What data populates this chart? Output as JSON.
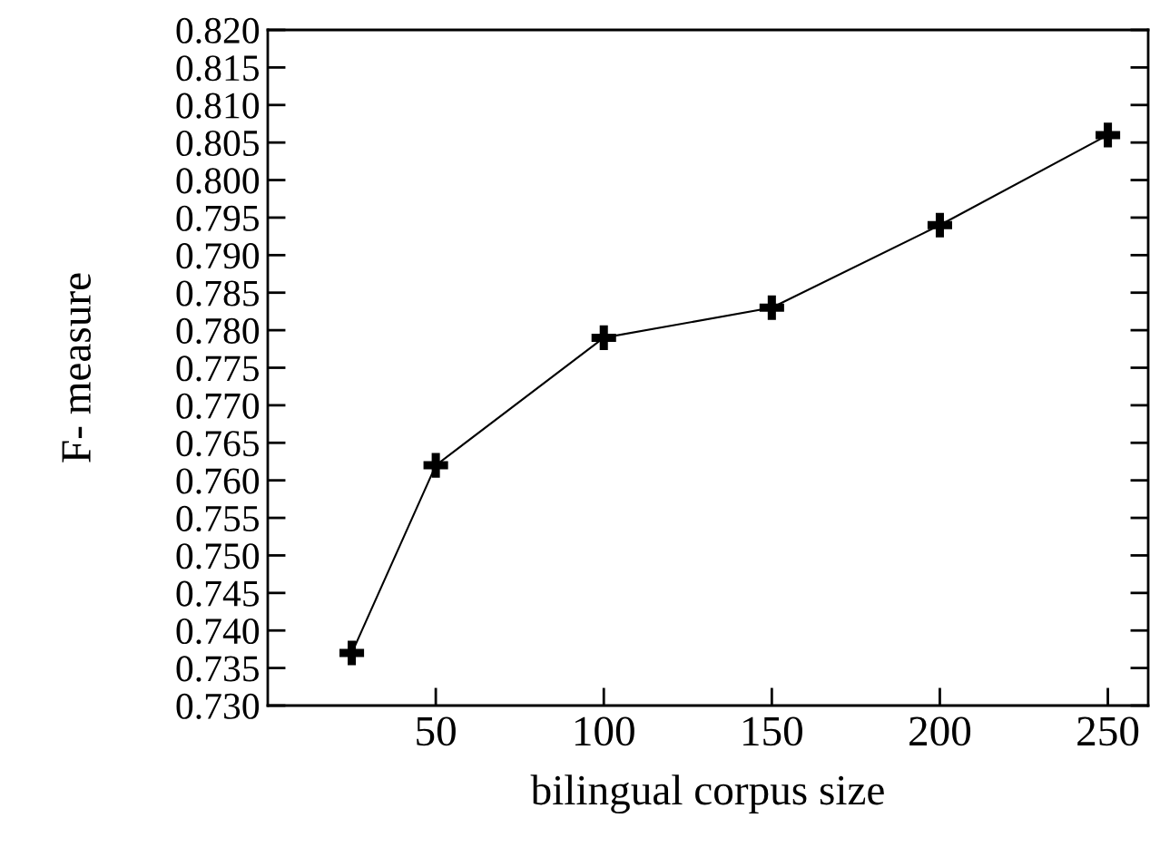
{
  "chart_data": {
    "type": "line",
    "xlabel": "bilingual corpus size",
    "ylabel": "F- measure",
    "x": [
      25,
      50,
      100,
      150,
      200,
      250
    ],
    "series": [
      {
        "color": "#000000",
        "values": [
          0.737,
          0.762,
          0.779,
          0.783,
          0.794,
          0.806
        ]
      }
    ],
    "xlim": [
      0,
      262
    ],
    "xticks": [
      50,
      100,
      150,
      200,
      250
    ],
    "ylim": [
      0.73,
      0.82
    ],
    "yticks": [
      {
        "value": 0.73,
        "label": "0.730"
      },
      {
        "value": 0.735,
        "label": "0.735"
      },
      {
        "value": 0.74,
        "label": "0.740"
      },
      {
        "value": 0.745,
        "label": "0.745"
      },
      {
        "value": 0.75,
        "label": "0.750"
      },
      {
        "value": 0.755,
        "label": "0.755"
      },
      {
        "value": 0.76,
        "label": "0.760"
      },
      {
        "value": 0.765,
        "label": "0.765"
      },
      {
        "value": 0.77,
        "label": "0.770"
      },
      {
        "value": 0.775,
        "label": "0.775"
      },
      {
        "value": 0.78,
        "label": "0.780"
      },
      {
        "value": 0.785,
        "label": "0.785"
      },
      {
        "value": 0.79,
        "label": "0.790"
      },
      {
        "value": 0.795,
        "label": "0.795"
      },
      {
        "value": 0.8,
        "label": "0.800"
      },
      {
        "value": 0.805,
        "label": "0.805"
      },
      {
        "value": 0.81,
        "label": "0.810"
      },
      {
        "value": 0.815,
        "label": "0.815"
      },
      {
        "value": 0.82,
        "label": "0.820"
      }
    ],
    "marker": "cross",
    "grid": false,
    "legend": false
  }
}
